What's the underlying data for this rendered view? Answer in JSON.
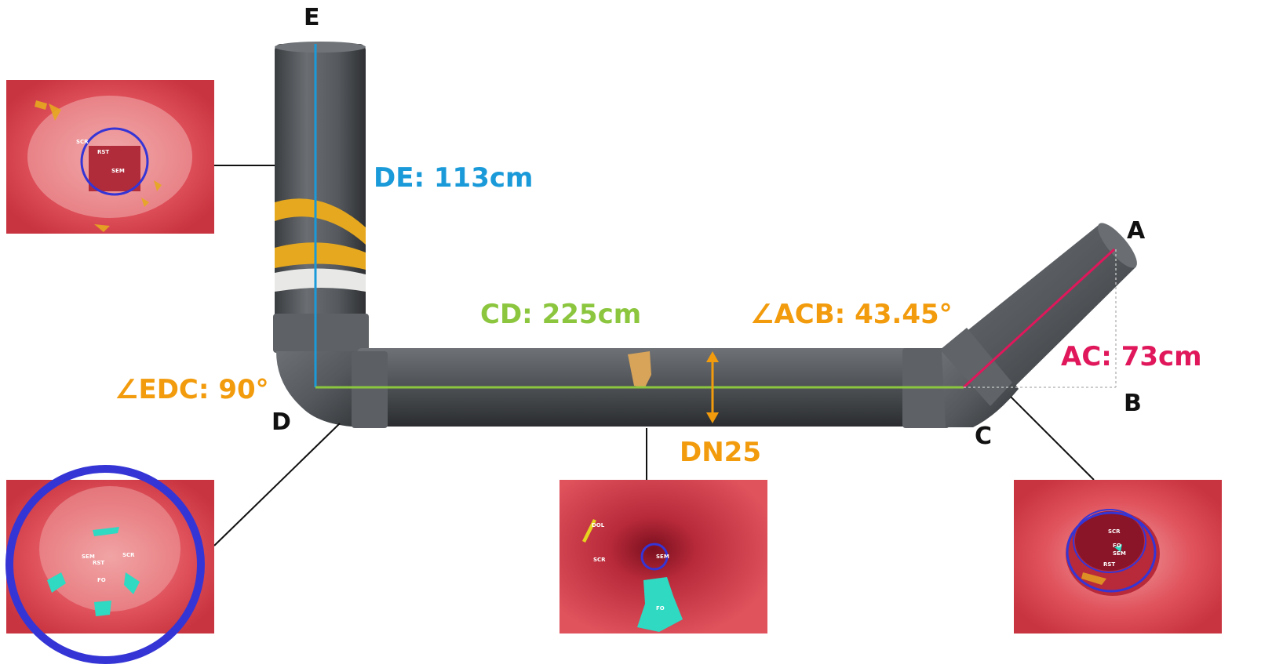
{
  "colors": {
    "de": "#1a9ad9",
    "cd": "#8cc63f",
    "ac": "#e0175b",
    "orange": "#f29b0c",
    "pipe": "#4f5357",
    "inset_bg": "#e0525c",
    "ring": "#3535d6",
    "cyan": "#2fd9c2"
  },
  "points": {
    "a": "A",
    "b": "B",
    "c": "C",
    "d": "D",
    "e": "E"
  },
  "measurements": {
    "de": "DE: 113cm",
    "cd": "CD: 225cm",
    "ac": "AC: 73cm",
    "acb": "∠ACB: 43.45°",
    "edc": "∠EDC: 90°",
    "dn": "DN25"
  },
  "insets": {
    "top_left": {
      "labels": [
        "SCR",
        "RST",
        "SEM"
      ]
    },
    "bottom_left": {
      "labels": [
        "SEM",
        "RST",
        "SCR",
        "FO"
      ]
    },
    "bottom_middle": {
      "labels": [
        "DOL",
        "SCR",
        "SEM",
        "FO"
      ]
    },
    "bottom_right": {
      "labels": [
        "SCR",
        "FO",
        "SEM",
        "RST"
      ]
    }
  }
}
